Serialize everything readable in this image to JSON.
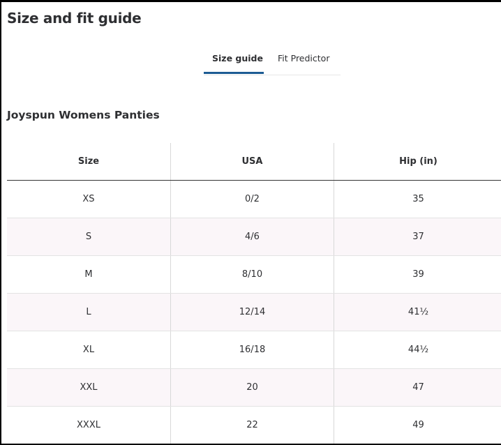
{
  "header": {
    "title": "Size and fit guide"
  },
  "tabs": [
    "Size guide",
    "Fit Predictor"
  ],
  "table": {
    "title": "Joyspun Womens Panties",
    "columns": [
      "Size",
      "USA",
      "Hip (in)"
    ],
    "rows": [
      [
        "XS",
        "0/2",
        "35"
      ],
      [
        "S",
        "4/6",
        "37"
      ],
      [
        "M",
        "8/10",
        "39"
      ],
      [
        "L",
        "12/14",
        "41½"
      ],
      [
        "XL",
        "16/18",
        "44½"
      ],
      [
        "XXL",
        "20",
        "47"
      ],
      [
        "XXXL",
        "22",
        "49"
      ]
    ]
  }
}
